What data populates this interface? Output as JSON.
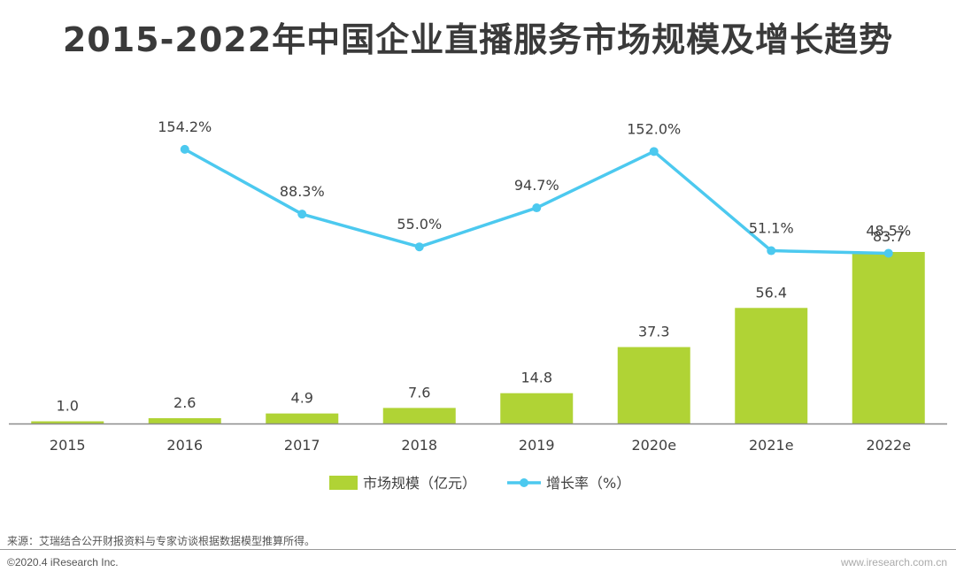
{
  "title": "2015-2022年中国企业直播服务市场规模及增长趋势",
  "chart_data": {
    "type": "bar",
    "categories": [
      "2015",
      "2016",
      "2017",
      "2018",
      "2019",
      "2020e",
      "2021e",
      "2022e"
    ],
    "series": [
      {
        "name": "市场规模（亿元）",
        "type": "bar",
        "values": [
          1.0,
          2.6,
          4.9,
          7.6,
          14.8,
          37.3,
          56.4,
          83.7
        ],
        "labels": [
          "1.0",
          "2.6",
          "4.9",
          "7.6",
          "14.8",
          "37.3",
          "56.4",
          "83.7"
        ]
      },
      {
        "name": "增长率（%）",
        "type": "line",
        "values": [
          null,
          154.2,
          88.3,
          55.0,
          94.7,
          152.0,
          51.1,
          48.5
        ],
        "labels": [
          "",
          "154.2%",
          "88.3%",
          "55.0%",
          "94.7%",
          "152.0%",
          "51.1%",
          "48.5%"
        ]
      }
    ],
    "bar_ylim": [
      0,
      90
    ],
    "line_ylim": [
      -110,
      200
    ],
    "legend_position": "bottom",
    "colors": {
      "bar": "#b0d335",
      "line": "#4cc9ef"
    }
  },
  "footer": {
    "source": "来源：艾瑞结合公开财报资料与专家访谈根据数据模型推算所得。",
    "copyright": "©2020.4 iResearch Inc.",
    "site": "www.iresearch.com.cn"
  }
}
